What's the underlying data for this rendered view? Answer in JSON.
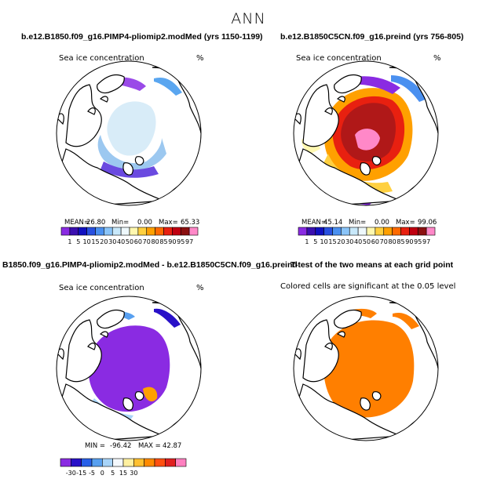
{
  "figure": {
    "title": "ANN"
  },
  "chart_data": [
    {
      "type": "map",
      "title": "b.e12.B1850.f09_g16.PIMP4-pliomip2.modMed (yrs 1150-1199)",
      "variable_label": "Sea ice concentration",
      "units": "%",
      "stats": {
        "mean_label": "MEAN=",
        "mean": "26.80",
        "min_label": "Min=",
        "min": "0.00",
        "max_label": "Max=",
        "max": "65.33"
      },
      "colorbar": {
        "levels": [
          "1",
          "5",
          "10",
          "15",
          "20",
          "30",
          "40",
          "50",
          "60",
          "70",
          "80",
          "85",
          "90",
          "95",
          "97"
        ],
        "colors": [
          "#8a2be2",
          "#3b0fb0",
          "#1010c0",
          "#2850e0",
          "#4a90f0",
          "#8ac4f8",
          "#c8e8fa",
          "#eef8fc",
          "#fff8b0",
          "#ffd040",
          "#ffa000",
          "#ff6a00",
          "#e82010",
          "#c00010",
          "#8b1010",
          "#ff88c8"
        ]
      }
    },
    {
      "type": "map",
      "title": "b.e12.B1850C5CN.f09_g16.preind (yrs 756-805)",
      "variable_label": "Sea ice concentration",
      "units": "%",
      "stats": {
        "mean_label": "MEAN=",
        "mean": "45.14",
        "min_label": "Min=",
        "min": "0.00",
        "max_label": "Max=",
        "max": "99.06"
      },
      "colorbar": {
        "levels": [
          "1",
          "5",
          "10",
          "15",
          "20",
          "30",
          "40",
          "50",
          "60",
          "70",
          "80",
          "85",
          "90",
          "95",
          "97"
        ],
        "colors": [
          "#8a2be2",
          "#3b0fb0",
          "#1010c0",
          "#2850e0",
          "#4a90f0",
          "#8ac4f8",
          "#c8e8fa",
          "#eef8fc",
          "#fff8b0",
          "#ffd040",
          "#ffa000",
          "#ff6a00",
          "#e82010",
          "#c00010",
          "#8b1010",
          "#ff88c8"
        ]
      }
    },
    {
      "type": "map",
      "title": "B1850.f09_g16.PIMP4-pliomip2.modMed - b.e12.B1850C5CN.f09_g16.preind",
      "variable_label": "Sea ice concentration",
      "units": "%",
      "stats": {
        "min_label": "MIN =",
        "min": "-96.42",
        "max_label": "MAX =",
        "max": "42.87"
      },
      "colorbar": {
        "levels": [
          "-30",
          "-15",
          "-5",
          "0",
          "5",
          "15",
          "30"
        ],
        "colors": [
          "#8a2be2",
          "#2810c8",
          "#2860e8",
          "#58a0f0",
          "#a8d4f8",
          "#f4f8fc",
          "#fff0a0",
          "#ffc030",
          "#ff8a00",
          "#ff5010",
          "#e02020",
          "#ff80c0"
        ]
      }
    },
    {
      "type": "map",
      "title": "T-test of the two means at each grid point",
      "note": "Colored cells are significant at the 0.05 level",
      "significant_color": "#ff7f00"
    }
  ]
}
